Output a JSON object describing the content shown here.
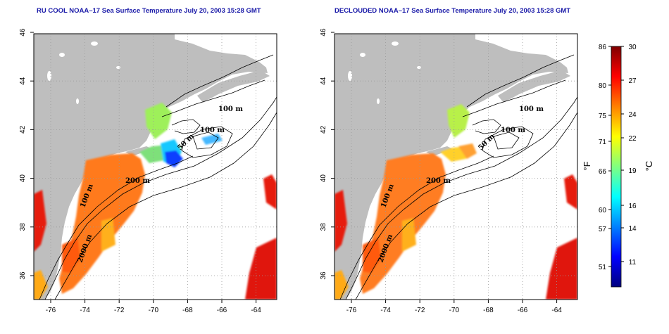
{
  "panels": [
    {
      "title": "RU COOL NOAA–17 Sea Surface Temperature July 20, 2003 15:28 GMT",
      "variant": "cool",
      "contour_labels": [
        "100 m",
        "100 m",
        "50 m",
        "200 m",
        "100 m",
        "2000 m"
      ]
    },
    {
      "title": "DECLOUDED NOAA–17 Sea Surface Temperature July 20, 2003 15:28 GMT",
      "variant": "declouded",
      "contour_labels": [
        "100 m",
        "100 m",
        "50 m",
        "200 m",
        "100 m",
        "2000 m"
      ]
    }
  ],
  "axes": {
    "x_ticks": [
      "-76",
      "-74",
      "-72",
      "-70",
      "-68",
      "-66",
      "-64"
    ],
    "y_ticks": [
      "36",
      "38",
      "40",
      "42",
      "44",
      "46"
    ]
  },
  "colorbar": {
    "fahrenheit_ticks": [
      "86",
      "80",
      "75",
      "71",
      "66",
      "60",
      "57",
      "51"
    ],
    "celsius_ticks": [
      "30",
      "27",
      "24",
      "22",
      "19",
      "16",
      "14",
      "11"
    ],
    "fahrenheit_unit": "°F",
    "celsius_unit": "°C",
    "colors": [
      "#00007f",
      "#0000ff",
      "#0080ff",
      "#00ffff",
      "#80ff80",
      "#ffff00",
      "#ff8000",
      "#ff0000",
      "#7f0000"
    ]
  },
  "colors": {
    "land": "#bebebe",
    "ocean": "#ffffff",
    "contour": "#000000",
    "title": "#1a1aa8"
  }
}
